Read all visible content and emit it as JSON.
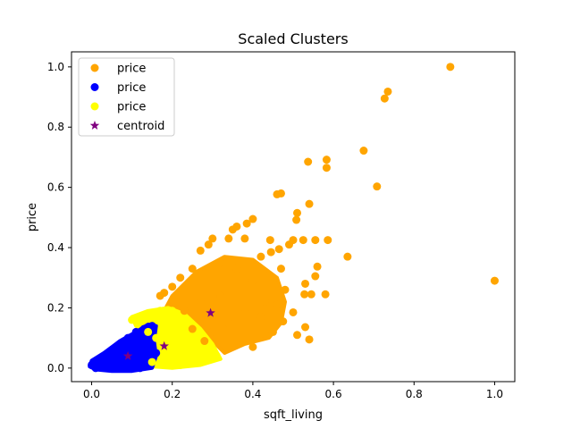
{
  "chart_data": {
    "type": "scatter",
    "title": "Scaled Clusters",
    "xlabel": "sqft_living",
    "ylabel": "price",
    "xlim": [
      -0.05,
      1.05
    ],
    "ylim": [
      -0.045,
      1.05
    ],
    "xticks": [
      0.0,
      0.2,
      0.4,
      0.6,
      0.8,
      1.0
    ],
    "yticks": [
      0.0,
      0.2,
      0.4,
      0.6,
      0.8,
      1.0
    ],
    "xtick_labels": [
      "0.0",
      "0.2",
      "0.4",
      "0.6",
      "0.8",
      "1.0"
    ],
    "ytick_labels": [
      "0.0",
      "0.2",
      "0.4",
      "0.6",
      "0.8",
      "1.0"
    ],
    "grid": false,
    "legend_position": "upper-left",
    "series": [
      {
        "name": "price",
        "color": "#ffa500",
        "marker": "circle",
        "points": [
          [
            0.89,
            1.0
          ],
          [
            0.735,
            0.918
          ],
          [
            0.727,
            0.895
          ],
          [
            0.675,
            0.722
          ],
          [
            0.583,
            0.692
          ],
          [
            0.583,
            0.665
          ],
          [
            0.537,
            0.685
          ],
          [
            0.708,
            0.603
          ],
          [
            0.47,
            0.58
          ],
          [
            0.46,
            0.577
          ],
          [
            0.54,
            0.545
          ],
          [
            0.51,
            0.515
          ],
          [
            0.508,
            0.492
          ],
          [
            0.4,
            0.495
          ],
          [
            0.385,
            0.48
          ],
          [
            0.36,
            0.47
          ],
          [
            0.35,
            0.46
          ],
          [
            0.525,
            0.425
          ],
          [
            0.586,
            0.425
          ],
          [
            0.555,
            0.425
          ],
          [
            0.5,
            0.425
          ],
          [
            0.443,
            0.425
          ],
          [
            0.49,
            0.41
          ],
          [
            0.465,
            0.395
          ],
          [
            0.38,
            0.43
          ],
          [
            0.34,
            0.43
          ],
          [
            0.3,
            0.43
          ],
          [
            0.29,
            0.41
          ],
          [
            0.27,
            0.39
          ],
          [
            0.635,
            0.37
          ],
          [
            0.56,
            0.337
          ],
          [
            0.555,
            0.305
          ],
          [
            0.53,
            0.28
          ],
          [
            0.58,
            0.245
          ],
          [
            0.545,
            0.245
          ],
          [
            0.528,
            0.245
          ],
          [
            1.0,
            0.29
          ],
          [
            0.5,
            0.185
          ],
          [
            0.475,
            0.155
          ],
          [
            0.53,
            0.136
          ],
          [
            0.51,
            0.11
          ],
          [
            0.54,
            0.095
          ],
          [
            0.445,
            0.385
          ],
          [
            0.42,
            0.37
          ],
          [
            0.47,
            0.33
          ],
          [
            0.45,
            0.3
          ],
          [
            0.48,
            0.26
          ],
          [
            0.4,
            0.29
          ],
          [
            0.36,
            0.33
          ],
          [
            0.32,
            0.35
          ],
          [
            0.25,
            0.33
          ],
          [
            0.22,
            0.3
          ],
          [
            0.2,
            0.27
          ],
          [
            0.18,
            0.25
          ],
          [
            0.17,
            0.24
          ],
          [
            0.32,
            0.24
          ],
          [
            0.27,
            0.22
          ],
          [
            0.38,
            0.2
          ],
          [
            0.42,
            0.17
          ],
          [
            0.34,
            0.15
          ],
          [
            0.3,
            0.12
          ],
          [
            0.28,
            0.09
          ],
          [
            0.36,
            0.08
          ],
          [
            0.4,
            0.07
          ],
          [
            0.45,
            0.12
          ],
          [
            0.25,
            0.13
          ],
          [
            0.23,
            0.19
          ],
          [
            0.21,
            0.22
          ],
          [
            0.43,
            0.22
          ],
          [
            0.46,
            0.21
          ]
        ]
      },
      {
        "name": "price",
        "color": "#0000ff",
        "marker": "circle",
        "points": [
          [
            0.0,
            0.01
          ],
          [
            0.01,
            0.0
          ],
          [
            0.02,
            0.02
          ],
          [
            0.03,
            0.04
          ],
          [
            0.05,
            0.06
          ],
          [
            0.07,
            0.08
          ],
          [
            0.09,
            0.1
          ],
          [
            0.11,
            0.12
          ],
          [
            0.13,
            0.13
          ],
          [
            0.15,
            0.14
          ],
          [
            0.06,
            0.0
          ],
          [
            0.09,
            0.0
          ],
          [
            0.12,
            0.0
          ],
          [
            0.14,
            0.02
          ],
          [
            0.16,
            0.05
          ],
          [
            0.04,
            0.03
          ],
          [
            0.08,
            0.05
          ],
          [
            0.11,
            0.07
          ],
          [
            0.13,
            0.09
          ],
          [
            0.06,
            0.02
          ]
        ]
      },
      {
        "name": "price",
        "color": "#ffff00",
        "marker": "circle",
        "points": [
          [
            0.1,
            0.16
          ],
          [
            0.12,
            0.17
          ],
          [
            0.15,
            0.18
          ],
          [
            0.17,
            0.19
          ],
          [
            0.2,
            0.19
          ],
          [
            0.22,
            0.17
          ],
          [
            0.24,
            0.15
          ],
          [
            0.26,
            0.12
          ],
          [
            0.28,
            0.09
          ],
          [
            0.3,
            0.06
          ],
          [
            0.31,
            0.04
          ],
          [
            0.15,
            0.02
          ],
          [
            0.18,
            0.01
          ],
          [
            0.22,
            0.01
          ],
          [
            0.26,
            0.03
          ],
          [
            0.19,
            0.12
          ],
          [
            0.16,
            0.1
          ],
          [
            0.21,
            0.08
          ],
          [
            0.14,
            0.12
          ],
          [
            0.24,
            0.07
          ]
        ]
      },
      {
        "name": "centroid",
        "color": "#800080",
        "marker": "star",
        "points": [
          [
            0.295,
            0.183
          ],
          [
            0.18,
            0.073
          ],
          [
            0.09,
            0.04
          ]
        ]
      }
    ]
  }
}
